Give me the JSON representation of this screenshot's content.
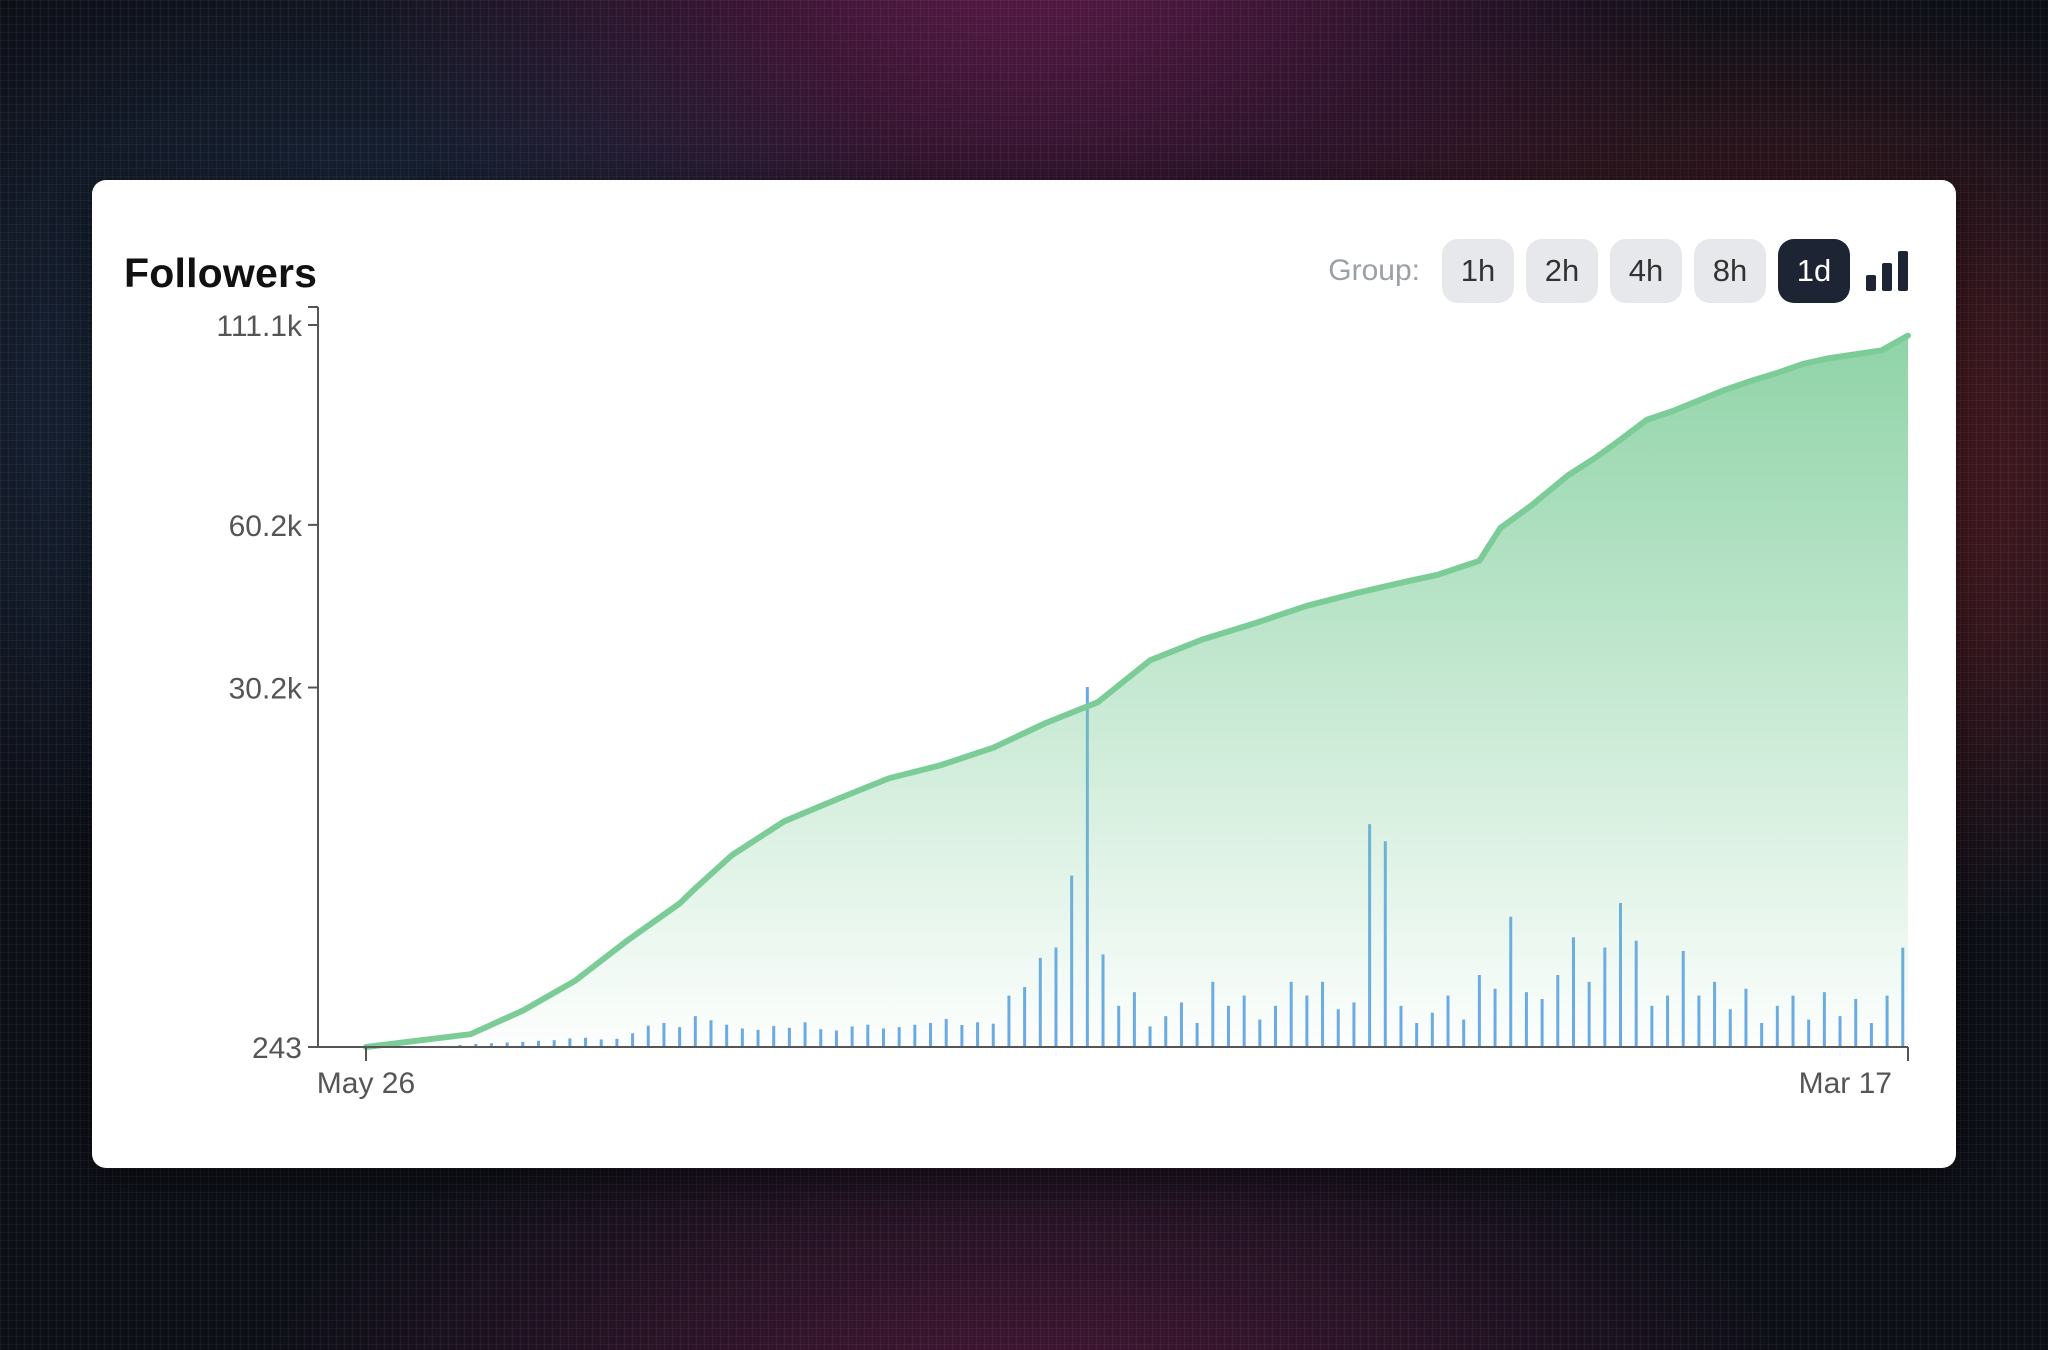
{
  "card": {
    "title": "Followers",
    "group_label": "Group:",
    "group_options": [
      "1h",
      "2h",
      "4h",
      "8h",
      "1d"
    ],
    "selected_group": "1d",
    "bar_toggle_icon": "bar-chart-icon"
  },
  "chart_data": {
    "type": "area",
    "title": "Followers",
    "xlabel": "",
    "ylabel": "",
    "ylim": [
      243,
      111100
    ],
    "y_scale": "sqrt",
    "y_ticks": [
      {
        "value": 243,
        "label": "243"
      },
      {
        "value": 30200,
        "label": "30.2k"
      },
      {
        "value": 60200,
        "label": "60.2k"
      },
      {
        "value": 111100,
        "label": "111.1k"
      }
    ],
    "x_ticks": [
      {
        "value": 0,
        "label": "May 26"
      },
      {
        "value": 295,
        "label": "Mar 17"
      }
    ],
    "xlim": [
      0,
      295
    ],
    "grid": false,
    "legend": "none",
    "colors": {
      "followers": "#7ccc98",
      "daily": "#6aa9e6"
    },
    "series": [
      {
        "type": "area",
        "x": [
          0,
          20,
          30,
          40,
          50,
          60,
          63,
          70,
          80,
          90,
          100,
          110,
          120,
          130,
          140,
          150,
          160,
          170,
          180,
          190,
          200,
          205,
          213,
          217,
          223,
          230,
          235,
          240,
          245,
          250,
          260,
          265,
          270,
          275,
          280,
          290,
          295
        ],
        "y": [
          243,
          450,
          1000,
          2000,
          3900,
          6200,
          7300,
          10000,
          13200,
          15500,
          17900,
          19500,
          21700,
          25000,
          28000,
          34500,
          38000,
          40800,
          44000,
          46500,
          48800,
          49900,
          52700,
          59500,
          64500,
          71400,
          75400,
          80000,
          85000,
          87300,
          92900,
          95300,
          97500,
          100000,
          101600,
          103800,
          108000
        ]
      },
      {
        "type": "bar",
        "x": [
          3,
          6,
          9,
          12,
          15,
          18,
          21,
          24,
          27,
          30,
          33,
          36,
          39,
          42,
          45,
          48,
          51,
          54,
          57,
          60,
          63,
          66,
          69,
          72,
          75,
          78,
          81,
          84,
          87,
          90,
          93,
          96,
          99,
          102,
          105,
          108,
          111,
          114,
          117,
          120,
          123,
          126,
          129,
          132,
          135,
          138,
          141,
          144,
          147,
          150,
          153,
          156,
          159,
          162,
          165,
          168,
          171,
          174,
          177,
          180,
          183,
          186,
          189,
          192,
          195,
          198,
          201,
          204,
          207,
          210,
          213,
          216,
          219,
          222,
          225,
          228,
          231,
          234,
          237,
          240,
          243,
          246,
          249,
          252,
          255,
          258,
          261,
          264,
          267,
          270,
          273,
          276,
          279,
          282,
          285,
          288,
          291,
          294
        ],
        "y": [
          10,
          12,
          15,
          20,
          30,
          60,
          90,
          110,
          130,
          150,
          180,
          200,
          250,
          270,
          220,
          240,
          400,
          620,
          700,
          580,
          900,
          780,
          650,
          540,
          500,
          610,
          560,
          720,
          520,
          480,
          600,
          650,
          540,
          580,
          650,
          700,
          820,
          640,
          720,
          680,
          1500,
          1750,
          2600,
          2900,
          5000,
          10500,
          2700,
          1200,
          1600,
          600,
          900,
          1300,
          700,
          1900,
          1200,
          1500,
          800,
          1200,
          1900,
          1500,
          1900,
          1100,
          1300,
          6500,
          6000,
          1200,
          700,
          1000,
          1500,
          800,
          2100,
          1700,
          3800,
          1600,
          1400,
          2100,
          3200,
          1900,
          2900,
          4200,
          3100,
          1200,
          1500,
          2800,
          1500,
          1900,
          1100,
          1700,
          700,
          1200,
          1500,
          800,
          1600,
          900,
          1400,
          700,
          1500,
          2900
        ]
      }
    ]
  }
}
